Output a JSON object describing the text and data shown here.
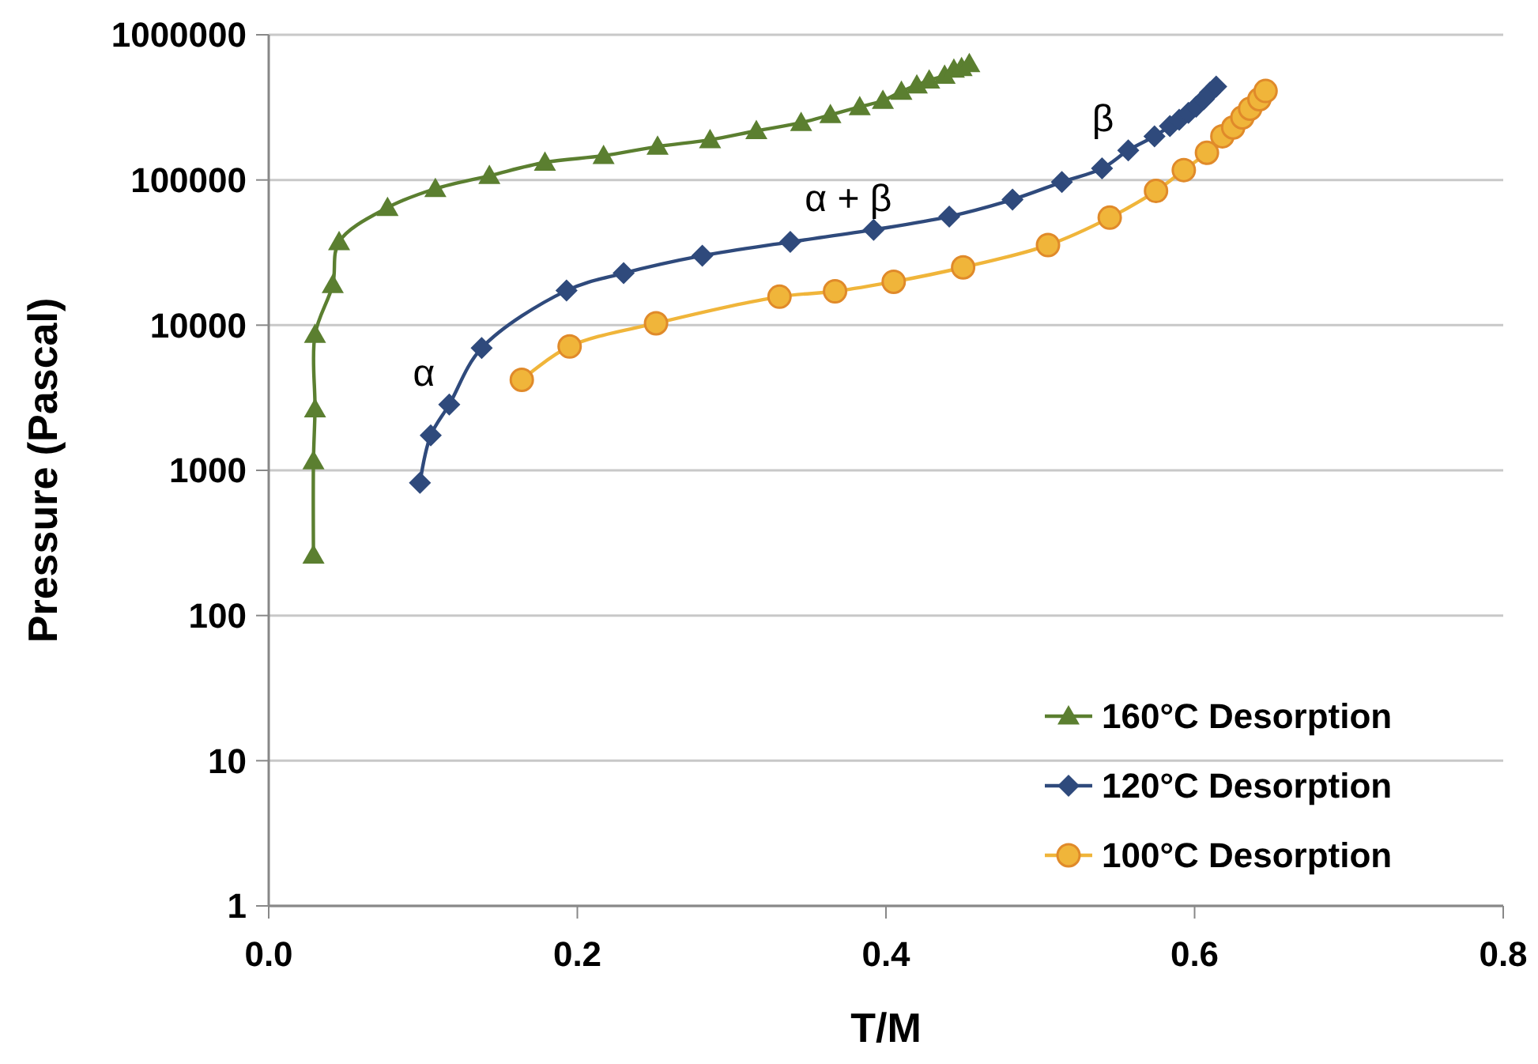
{
  "chart_data": {
    "type": "line",
    "xlabel": "T/M",
    "ylabel": "Pressure (Pascal)",
    "log": "y",
    "grid": "y",
    "legend": "bottom right",
    "line_style": "solid",
    "xlim": [
      0,
      0.8
    ],
    "xticks": [
      {
        "value": 0,
        "label": "0.0"
      },
      0.2,
      0.4,
      0.6,
      0.8
    ],
    "ylim": [
      1,
      1000000
    ],
    "yticks": [
      1,
      10,
      100,
      1000,
      10000,
      100000,
      1000000
    ],
    "series": [
      {
        "name": "160°C Desorption",
        "color": "#5b7f30",
        "marker": "triangle",
        "x": [
          0.029,
          0.029,
          0.03,
          0.03,
          0.0415,
          0.0456,
          0.077,
          0.108,
          0.143,
          0.179,
          0.217,
          0.252,
          0.286,
          0.316,
          0.345,
          0.364,
          0.383,
          0.398,
          0.41,
          0.42,
          0.428,
          0.438,
          0.444,
          0.449,
          0.454
        ],
        "values": [
          260,
          1160,
          2640,
          8600,
          19000,
          37500,
          64500,
          87000,
          107000,
          132000,
          147000,
          170000,
          189000,
          218000,
          248000,
          281000,
          319000,
          352000,
          407000,
          450000,
          486000,
          525000,
          577000,
          592000,
          630000
        ]
      },
      {
        "name": "120°C Desorption",
        "color": "#2f4a7c",
        "marker": "diamond",
        "x": [
          0.098,
          0.105,
          0.117,
          0.138,
          0.193,
          0.23,
          0.281,
          0.338,
          0.392,
          0.441,
          0.482,
          0.514,
          0.54,
          0.557,
          0.574,
          0.584,
          0.59,
          0.596,
          0.601,
          0.606,
          0.61,
          0.614
        ],
        "values": [
          820,
          1740,
          2840,
          6950,
          17300,
          22800,
          30100,
          37400,
          45400,
          56000,
          73300,
          96700,
          120000,
          160000,
          200000,
          235000,
          260000,
          290000,
          320000,
          360000,
          400000,
          440000
        ]
      },
      {
        "name": "100°C Desorption",
        "color": "#f0b53a",
        "marker": "circle",
        "x": [
          0.164,
          0.195,
          0.251,
          0.331,
          0.367,
          0.405,
          0.45,
          0.505,
          0.545,
          0.575,
          0.593,
          0.608,
          0.618,
          0.625,
          0.631,
          0.636,
          0.642,
          0.646
        ],
        "values": [
          4200,
          7130,
          10300,
          15700,
          17100,
          19900,
          25000,
          35600,
          55000,
          84000,
          117000,
          154000,
          200000,
          230000,
          270000,
          310000,
          360000,
          410000
        ]
      }
    ],
    "annotations": [
      {
        "text": "α",
        "x": 0.117,
        "y": 2840
      },
      {
        "text": "α + β",
        "x": 0.392,
        "y": 45400
      },
      {
        "text": "β",
        "x": 0.557,
        "y": 160000
      }
    ]
  }
}
